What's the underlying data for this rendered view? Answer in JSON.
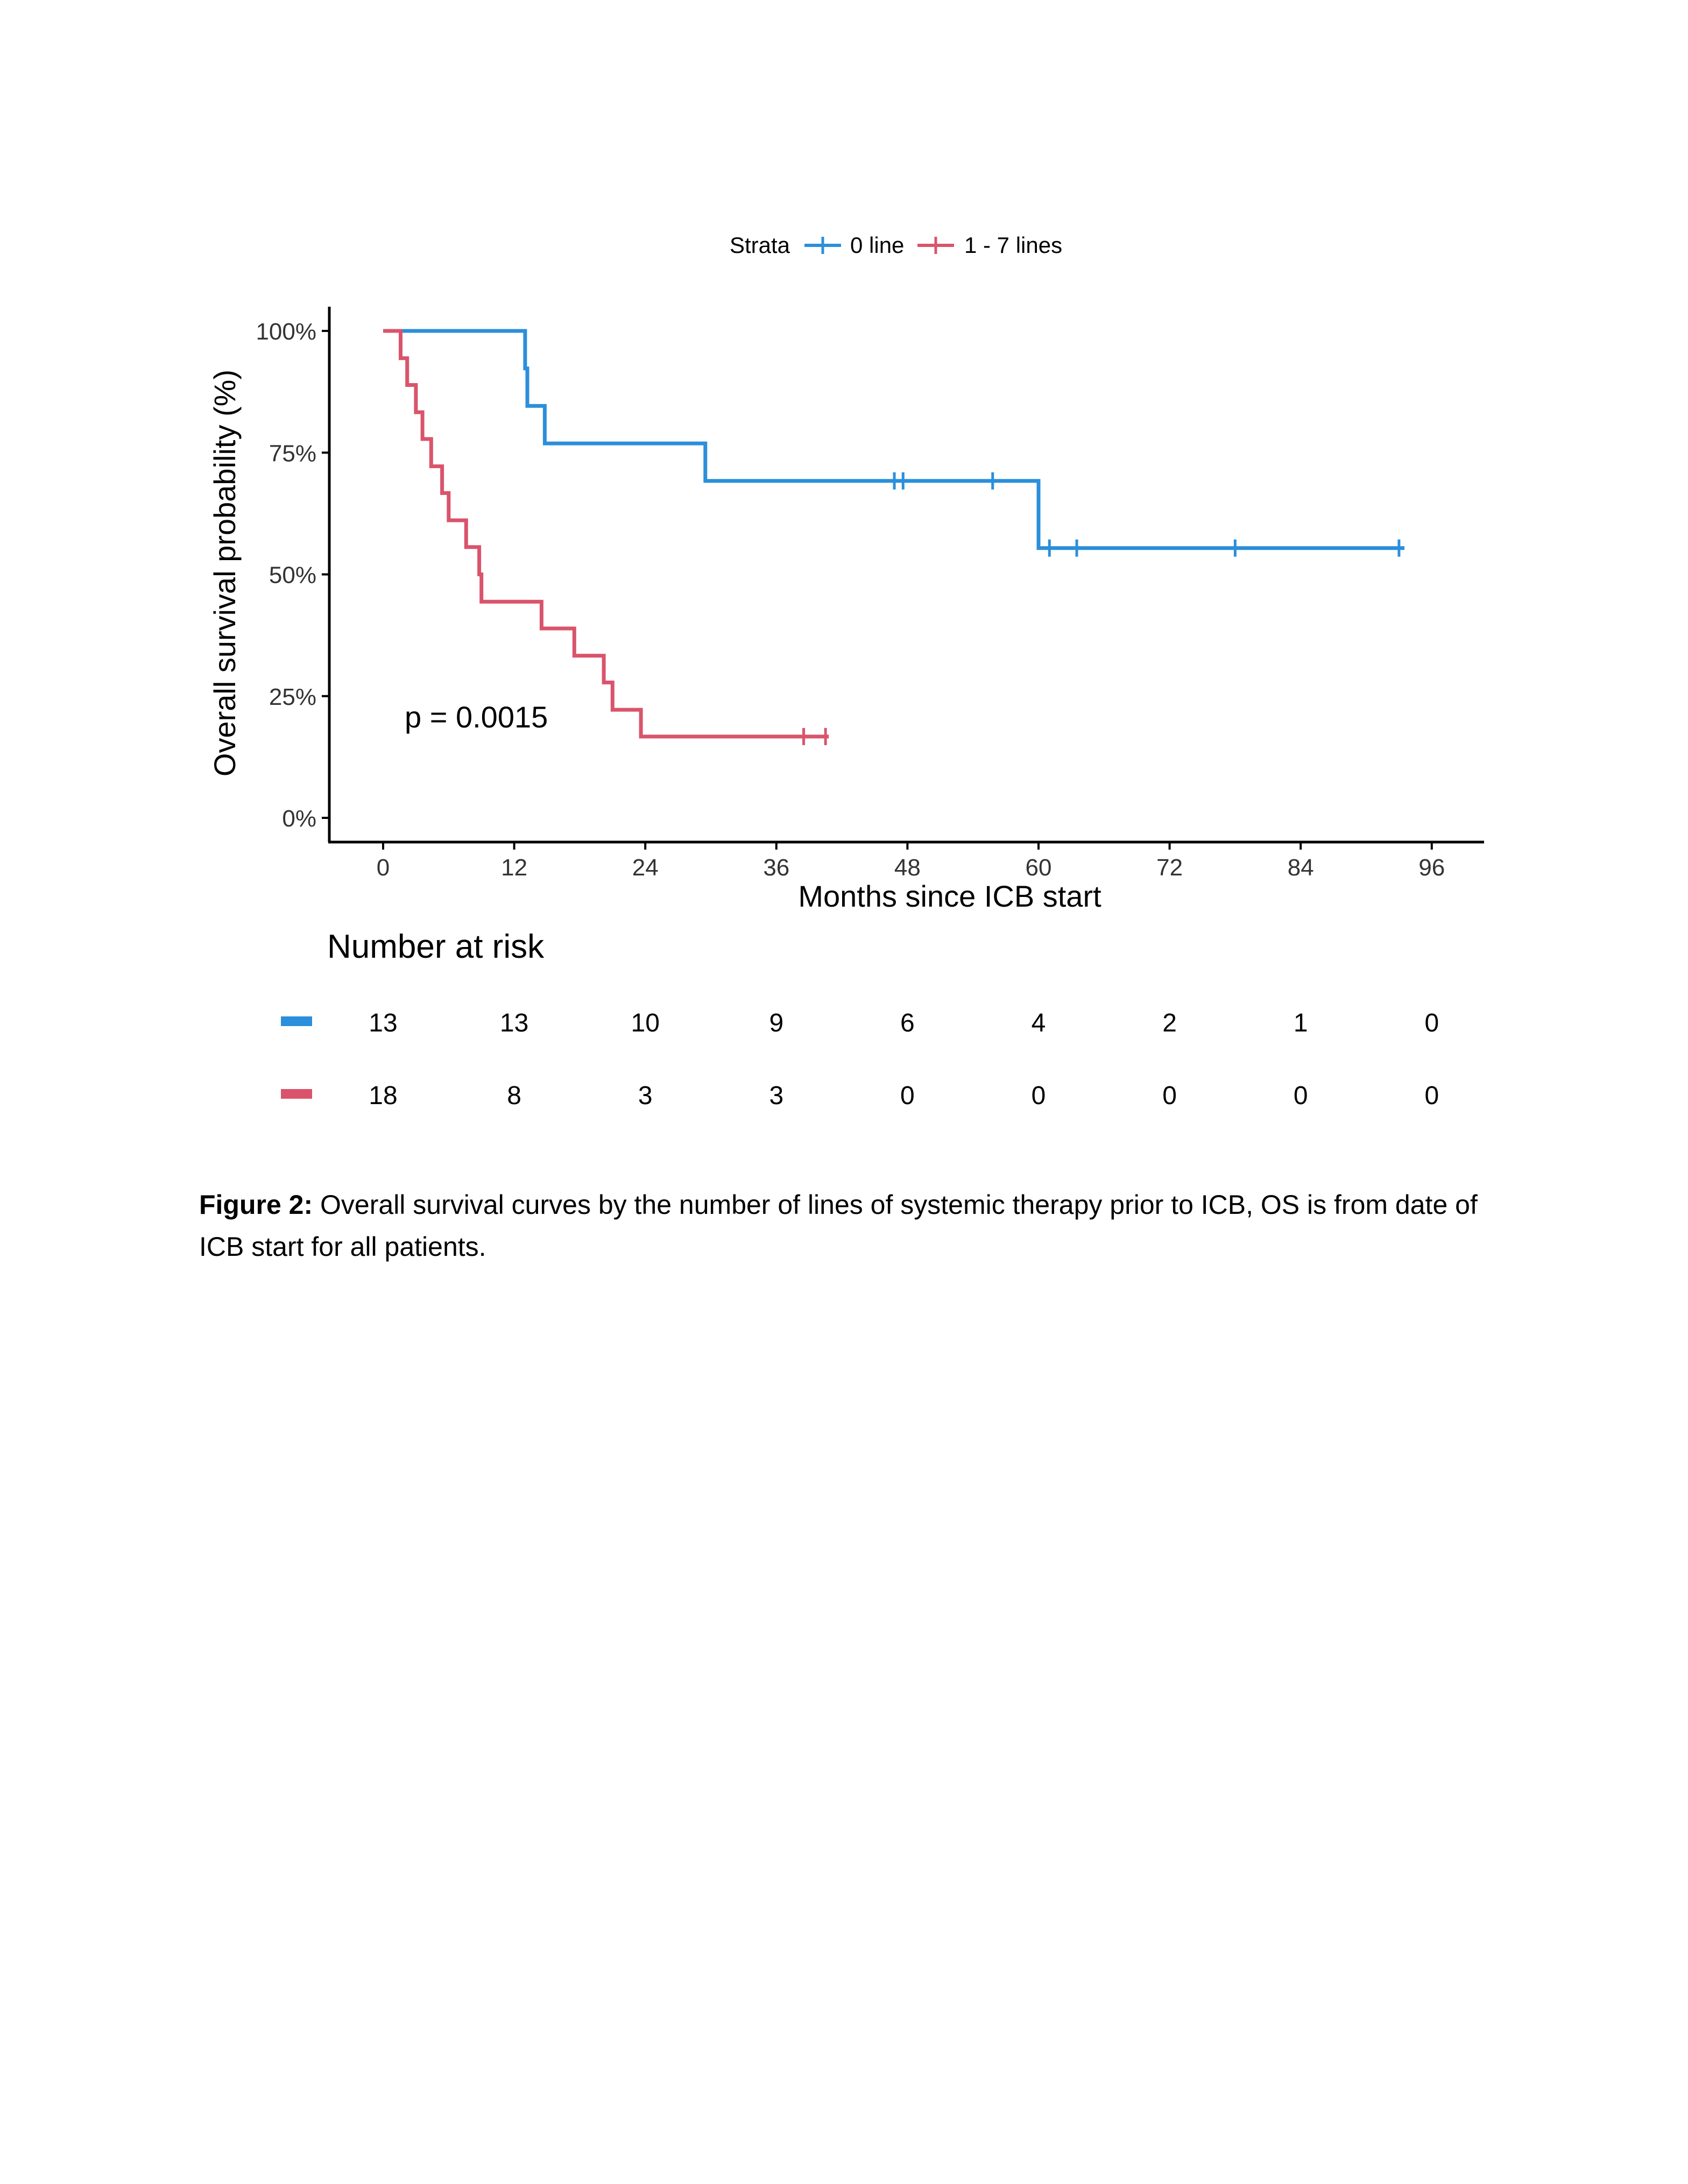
{
  "chart_data": {
    "type": "line",
    "subtype": "kaplan-meier",
    "xlabel": "Months since ICB start",
    "ylabel": "Overall survival probability (%)",
    "xlim": [
      -3,
      101
    ],
    "ylim": [
      0,
      1
    ],
    "x_ticks": [
      0,
      12,
      24,
      36,
      48,
      60,
      72,
      84,
      96
    ],
    "y_ticks": [
      0,
      0.25,
      0.5,
      0.75,
      1.0
    ],
    "y_tick_labels": [
      "0%",
      "25%",
      "50%",
      "75%",
      "100%"
    ],
    "grid": false,
    "legend": {
      "title": "Strata",
      "position": "top"
    },
    "annotation": "p = 0.0015",
    "series": [
      {
        "name": "0 line",
        "color": "#2b8fdb",
        "steps": [
          [
            0,
            1.0
          ],
          [
            13,
            1.0
          ],
          [
            13,
            0.923
          ],
          [
            13.2,
            0.923
          ],
          [
            13.2,
            0.846
          ],
          [
            14.8,
            0.846
          ],
          [
            14.8,
            0.769
          ],
          [
            29.5,
            0.769
          ],
          [
            29.5,
            0.692
          ],
          [
            60,
            0.692
          ],
          [
            60,
            0.554
          ],
          [
            93.5,
            0.554
          ]
        ],
        "censor_x": [
          46.8,
          47.6,
          55.8,
          61,
          63.5,
          78,
          93
        ]
      },
      {
        "name": "1 - 7 lines",
        "color": "#d9546b",
        "steps": [
          [
            0,
            1.0
          ],
          [
            1.6,
            1.0
          ],
          [
            1.6,
            0.944
          ],
          [
            2.2,
            0.944
          ],
          [
            2.2,
            0.889
          ],
          [
            3,
            0.889
          ],
          [
            3,
            0.833
          ],
          [
            3.6,
            0.833
          ],
          [
            3.6,
            0.778
          ],
          [
            4.4,
            0.778
          ],
          [
            4.4,
            0.722
          ],
          [
            5.4,
            0.722
          ],
          [
            5.4,
            0.667
          ],
          [
            6,
            0.667
          ],
          [
            6,
            0.611
          ],
          [
            7.6,
            0.611
          ],
          [
            7.6,
            0.556
          ],
          [
            8.8,
            0.556
          ],
          [
            8.8,
            0.5
          ],
          [
            9,
            0.5
          ],
          [
            9,
            0.444
          ],
          [
            14.5,
            0.444
          ],
          [
            14.5,
            0.389
          ],
          [
            17.5,
            0.389
          ],
          [
            17.5,
            0.333
          ],
          [
            20.2,
            0.333
          ],
          [
            20.2,
            0.278
          ],
          [
            21,
            0.278
          ],
          [
            21,
            0.222
          ],
          [
            23.6,
            0.222
          ],
          [
            23.6,
            0.167
          ],
          [
            40.8,
            0.167
          ]
        ],
        "censor_x": [
          38.5,
          40.5
        ]
      }
    ],
    "risk_table": {
      "title": "Number at risk",
      "times": [
        0,
        12,
        24,
        36,
        48,
        60,
        72,
        84,
        96
      ],
      "rows": [
        {
          "series": "0 line",
          "values": [
            "13",
            "13",
            "10",
            "9",
            "6",
            "4",
            "2",
            "1",
            "0"
          ]
        },
        {
          "series": "1 - 7 lines",
          "values": [
            "18",
            "8",
            "3",
            "3",
            "0",
            "0",
            "0",
            "0",
            "0"
          ]
        }
      ]
    }
  },
  "caption": {
    "label": "Figure 2:",
    "text": " Overall survival curves by the number of lines of systemic therapy prior to ICB, OS is from date of ICB start for all patients."
  }
}
